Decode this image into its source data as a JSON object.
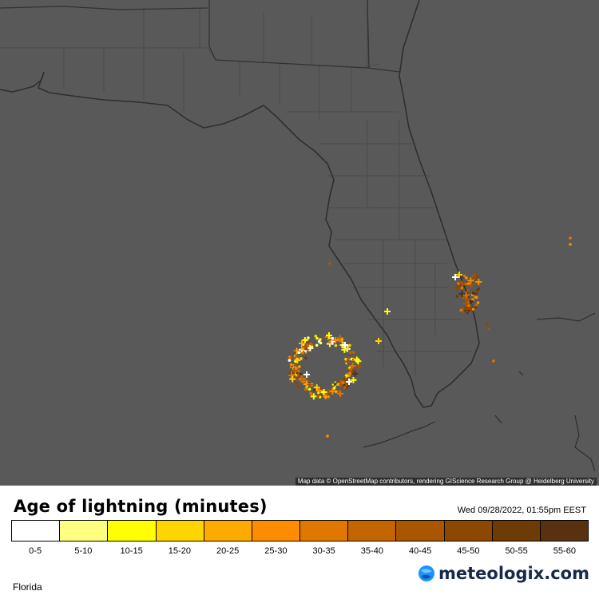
{
  "map": {
    "attribution": "Map data © OpenStreetMap contributors, rendering GIScience Research Group @ Heidelberg University",
    "colors": {
      "background": "#595959",
      "coastline": "#2e2e2e",
      "boundaries": "#444444"
    }
  },
  "legend": {
    "title": "Age of lightning (minutes)",
    "timestamp": "Wed 09/28/2022, 01:55pm EEST",
    "bins": [
      {
        "label": "0-5",
        "color": "#ffffff"
      },
      {
        "label": "5-10",
        "color": "#ffff80"
      },
      {
        "label": "10-15",
        "color": "#ffff00"
      },
      {
        "label": "15-20",
        "color": "#ffd500"
      },
      {
        "label": "20-25",
        "color": "#ffaa00"
      },
      {
        "label": "25-30",
        "color": "#ff8c00"
      },
      {
        "label": "30-35",
        "color": "#e07800"
      },
      {
        "label": "35-40",
        "color": "#c46500"
      },
      {
        "label": "40-45",
        "color": "#a85600"
      },
      {
        "label": "45-50",
        "color": "#8c4700"
      },
      {
        "label": "50-55",
        "color": "#6e3a05"
      },
      {
        "label": "55-60",
        "color": "#573110"
      }
    ]
  },
  "region": "Florida",
  "brand": {
    "name": "meteologix.com",
    "icon": "globe-icon",
    "color": "#152a4a"
  }
}
